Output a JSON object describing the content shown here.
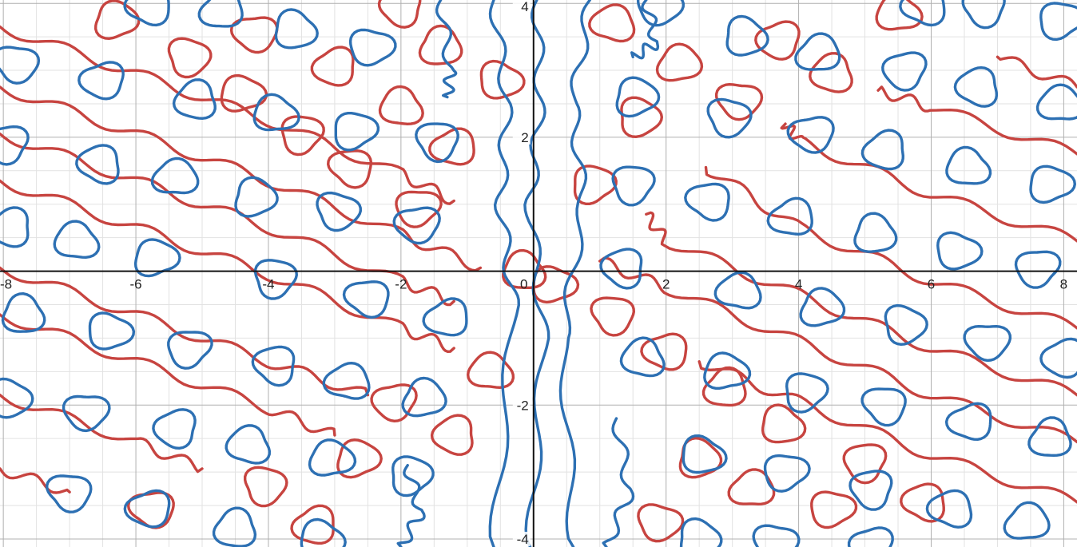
{
  "chart_data": {
    "type": "line",
    "title": "",
    "xlabel": "",
    "ylabel": "",
    "xlim": [
      -8.05,
      8.2
    ],
    "ylim": [
      -4.12,
      4.05
    ],
    "grid": true,
    "minor_grid_step": 0.5,
    "major_grid_step": 2,
    "x_ticks": [
      -8,
      -6,
      -4,
      -2,
      0,
      2,
      4,
      6,
      8
    ],
    "y_ticks": [
      -4,
      -2,
      2,
      4
    ],
    "x_tick_labels": [
      "-8",
      "-6",
      "-4",
      "-2",
      "0",
      "2",
      "4",
      "6",
      "8"
    ],
    "y_tick_labels": [
      "-4",
      "-2",
      "2",
      "4"
    ],
    "colors": {
      "red": "#c74440",
      "blue": "#2d70b3",
      "axis": "#111111",
      "grid_major": "#b0b0b0",
      "grid_minor": "#e2e2e2"
    },
    "series": [
      {
        "color": "red",
        "kind": "diagonal-wavy-bands",
        "lines": [
          {
            "x": [
              -8.05,
              -6.0,
              -4.0,
              -2.0,
              -1.2
            ],
            "y": [
              3.65,
              2.95,
              2.25,
              1.45,
              1.05
            ]
          },
          {
            "x": [
              -8.05,
              -6.0,
              -4.0,
              -2.0,
              -0.8
            ],
            "y": [
              2.75,
              2.05,
              1.35,
              0.55,
              0.05
            ]
          },
          {
            "x": [
              -8.05,
              -6.0,
              -4.0,
              -2.0,
              -1.2
            ],
            "y": [
              2.05,
              1.35,
              0.65,
              -0.15,
              -0.45
            ]
          },
          {
            "x": [
              -8.05,
              -6.0,
              -4.0,
              -2.0,
              -1.2
            ],
            "y": [
              1.35,
              0.65,
              -0.05,
              -0.85,
              -1.15
            ]
          },
          {
            "x": [
              -8.05,
              -6.0,
              -4.0,
              -2.5
            ],
            "y": [
              0.05,
              -0.65,
              -1.35,
              -1.85
            ]
          },
          {
            "x": [
              -8.05,
              -6.0,
              -4.0,
              -3.0
            ],
            "y": [
              -0.65,
              -1.35,
              -2.05,
              -2.45
            ]
          },
          {
            "x": [
              -8.05,
              -6.0,
              -5.0
            ],
            "y": [
              -1.85,
              -2.55,
              -2.95
            ]
          },
          {
            "x": [
              -8.05,
              -7.0
            ],
            "y": [
              -2.95,
              -3.3
            ]
          },
          {
            "x": [
              8.2,
              6.0,
              4.0,
              2.5
            ],
            "y": [
              -3.45,
              -2.75,
              -1.95,
              -1.35
            ]
          },
          {
            "x": [
              8.2,
              6.0,
              4.0,
              2.0,
              1.0
            ],
            "y": [
              -2.55,
              -1.85,
              -1.05,
              -0.25,
              0.15
            ]
          },
          {
            "x": [
              8.2,
              6.0,
              4.0,
              2.0,
              1.7
            ],
            "y": [
              -1.85,
              -1.15,
              -0.35,
              0.45,
              0.85
            ]
          },
          {
            "x": [
              8.2,
              6.0,
              4.0,
              2.6
            ],
            "y": [
              -0.85,
              -0.15,
              0.65,
              1.55
            ]
          },
          {
            "x": [
              8.2,
              6.0,
              4.0,
              3.8
            ],
            "y": [
              0.45,
              1.15,
              1.95,
              2.2
            ]
          },
          {
            "x": [
              8.2,
              6.0,
              5.2
            ],
            "y": [
              1.75,
              2.45,
              2.7
            ]
          },
          {
            "x": [
              8.2,
              7.0
            ],
            "y": [
              2.75,
              3.2
            ]
          }
        ]
      },
      {
        "color": "red",
        "kind": "closed-loops",
        "loops": [
          {
            "x": -6.3,
            "y": 3.75
          },
          {
            "x": -5.2,
            "y": 3.2
          },
          {
            "x": -4.2,
            "y": 3.55
          },
          {
            "x": -3.0,
            "y": 3.05
          },
          {
            "x": -2.0,
            "y": 2.45
          },
          {
            "x": -4.4,
            "y": 2.65
          },
          {
            "x": -3.5,
            "y": 2.05
          },
          {
            "x": -2.75,
            "y": 1.55
          },
          {
            "x": -1.2,
            "y": 1.85
          },
          {
            "x": -1.4,
            "y": 3.35
          },
          {
            "x": -0.5,
            "y": 2.85
          },
          {
            "x": -1.75,
            "y": 0.95
          },
          {
            "x": -2.0,
            "y": 3.95
          },
          {
            "x": 1.2,
            "y": 3.7
          },
          {
            "x": 2.2,
            "y": 3.1
          },
          {
            "x": 1.6,
            "y": 2.3
          },
          {
            "x": 3.1,
            "y": 2.55
          },
          {
            "x": 3.7,
            "y": 3.45
          },
          {
            "x": 4.5,
            "y": 2.95
          },
          {
            "x": 5.5,
            "y": 3.85
          },
          {
            "x": 0.9,
            "y": 1.3
          },
          {
            "x": 1.2,
            "y": -0.65
          },
          {
            "x": 2.0,
            "y": -1.2
          },
          {
            "x": 2.9,
            "y": -1.75
          },
          {
            "x": 3.75,
            "y": -2.3
          },
          {
            "x": 4.5,
            "y": -3.55
          },
          {
            "x": 5.0,
            "y": -2.85
          },
          {
            "x": 5.9,
            "y": -3.45
          },
          {
            "x": 3.3,
            "y": -3.25
          },
          {
            "x": 2.5,
            "y": -2.8
          },
          {
            "x": 1.9,
            "y": -3.75
          },
          {
            "x": -2.1,
            "y": -1.95
          },
          {
            "x": -1.2,
            "y": -2.45
          },
          {
            "x": -0.65,
            "y": -1.5
          },
          {
            "x": -2.65,
            "y": -2.8
          },
          {
            "x": -4.05,
            "y": -3.2
          },
          {
            "x": -5.75,
            "y": -3.55
          },
          {
            "x": -3.3,
            "y": -3.8
          },
          {
            "x": -0.15,
            "y": 0.0
          },
          {
            "x": 0.3,
            "y": -0.2
          }
        ]
      },
      {
        "color": "blue",
        "kind": "near-vertical-curves",
        "lines": [
          {
            "x": [
              -0.6,
              -0.4,
              -0.5,
              -0.3,
              -0.6
            ],
            "y": [
              4.05,
              2.5,
              1.0,
              -0.5,
              -4.12
            ]
          },
          {
            "x": [
              0.05,
              0.1,
              -0.05,
              0.15,
              -0.05
            ],
            "y": [
              4.05,
              2.5,
              1.0,
              -1.0,
              -4.12
            ]
          },
          {
            "x": [
              0.85,
              0.6,
              0.75,
              0.45,
              0.6
            ],
            "y": [
              4.05,
              2.5,
              1.0,
              -1.0,
              -4.12
            ]
          },
          {
            "x": [
              -1.4,
              -1.25,
              -1.3
            ],
            "y": [
              4.05,
              3.0,
              2.6
            ]
          },
          {
            "x": [
              1.7,
              1.85,
              1.5
            ],
            "y": [
              4.05,
              3.4,
              3.2
            ]
          },
          {
            "x": [
              1.25,
              1.45,
              1.1
            ],
            "y": [
              -2.2,
              -3.3,
              -4.12
            ]
          },
          {
            "x": [
              -1.9,
              -1.7,
              -2.0
            ],
            "y": [
              -2.9,
              -3.6,
              -4.12
            ]
          }
        ]
      },
      {
        "color": "blue",
        "kind": "closed-loops",
        "loops": [
          {
            "x": -7.8,
            "y": 3.1
          },
          {
            "x": -6.5,
            "y": 2.85
          },
          {
            "x": -5.1,
            "y": 2.55
          },
          {
            "x": -3.9,
            "y": 2.35
          },
          {
            "x": -2.7,
            "y": 2.1
          },
          {
            "x": -1.45,
            "y": 1.95
          },
          {
            "x": -5.8,
            "y": 3.95
          },
          {
            "x": -4.7,
            "y": 3.9
          },
          {
            "x": -3.6,
            "y": 3.6
          },
          {
            "x": -2.45,
            "y": 3.35
          },
          {
            "x": -7.95,
            "y": 1.9
          },
          {
            "x": -6.55,
            "y": 1.6
          },
          {
            "x": -5.4,
            "y": 1.4
          },
          {
            "x": -4.2,
            "y": 1.1
          },
          {
            "x": -2.95,
            "y": 0.9
          },
          {
            "x": -1.75,
            "y": 0.7
          },
          {
            "x": -7.9,
            "y": 0.65
          },
          {
            "x": -6.9,
            "y": 0.45
          },
          {
            "x": -5.7,
            "y": 0.2
          },
          {
            "x": -3.9,
            "y": -0.1
          },
          {
            "x": -2.5,
            "y": -0.4
          },
          {
            "x": -1.3,
            "y": -0.7
          },
          {
            "x": -7.7,
            "y": -0.65
          },
          {
            "x": -6.4,
            "y": -0.9
          },
          {
            "x": -5.2,
            "y": -1.15
          },
          {
            "x": -3.9,
            "y": -1.4
          },
          {
            "x": -2.8,
            "y": -1.65
          },
          {
            "x": -1.65,
            "y": -1.9
          },
          {
            "x": -7.9,
            "y": -1.9
          },
          {
            "x": -6.75,
            "y": -2.1
          },
          {
            "x": -5.4,
            "y": -2.35
          },
          {
            "x": -4.3,
            "y": -2.6
          },
          {
            "x": -3.05,
            "y": -2.8
          },
          {
            "x": -1.85,
            "y": -3.05
          },
          {
            "x": -7.0,
            "y": -3.3
          },
          {
            "x": -5.8,
            "y": -3.55
          },
          {
            "x": -4.5,
            "y": -3.85
          },
          {
            "x": -3.2,
            "y": -4.0
          },
          {
            "x": 7.95,
            "y": 3.75
          },
          {
            "x": 6.8,
            "y": 3.95
          },
          {
            "x": 5.9,
            "y": 3.95
          },
          {
            "x": 4.3,
            "y": 3.25
          },
          {
            "x": 3.2,
            "y": 3.5
          },
          {
            "x": 1.9,
            "y": 3.95
          },
          {
            "x": 5.6,
            "y": 3.0
          },
          {
            "x": 6.7,
            "y": 2.75
          },
          {
            "x": 7.95,
            "y": 2.5
          },
          {
            "x": 1.55,
            "y": 2.6
          },
          {
            "x": 2.95,
            "y": 2.3
          },
          {
            "x": 4.2,
            "y": 2.05
          },
          {
            "x": 5.3,
            "y": 1.8
          },
          {
            "x": 6.55,
            "y": 1.55
          },
          {
            "x": 7.8,
            "y": 1.3
          },
          {
            "x": 1.5,
            "y": 1.3
          },
          {
            "x": 2.65,
            "y": 1.05
          },
          {
            "x": 3.9,
            "y": 0.8
          },
          {
            "x": 5.15,
            "y": 0.55
          },
          {
            "x": 6.4,
            "y": 0.3
          },
          {
            "x": 7.6,
            "y": 0.05
          },
          {
            "x": 1.35,
            "y": 0.05
          },
          {
            "x": 3.1,
            "y": -0.3
          },
          {
            "x": 4.35,
            "y": -0.55
          },
          {
            "x": 5.6,
            "y": -0.8
          },
          {
            "x": 6.85,
            "y": -1.05
          },
          {
            "x": 8.0,
            "y": -1.3
          },
          {
            "x": 1.65,
            "y": -1.3
          },
          {
            "x": 2.9,
            "y": -1.5
          },
          {
            "x": 4.1,
            "y": -1.8
          },
          {
            "x": 5.3,
            "y": -2.0
          },
          {
            "x": 6.6,
            "y": -2.25
          },
          {
            "x": 7.8,
            "y": -2.5
          },
          {
            "x": 2.55,
            "y": -2.75
          },
          {
            "x": 3.8,
            "y": -3.0
          },
          {
            "x": 5.1,
            "y": -3.25
          },
          {
            "x": 6.3,
            "y": -3.55
          },
          {
            "x": 7.45,
            "y": -3.75
          },
          {
            "x": 2.5,
            "y": -4.0
          },
          {
            "x": 3.65,
            "y": -4.05
          },
          {
            "x": 5.1,
            "y": -4.1
          }
        ]
      }
    ]
  }
}
